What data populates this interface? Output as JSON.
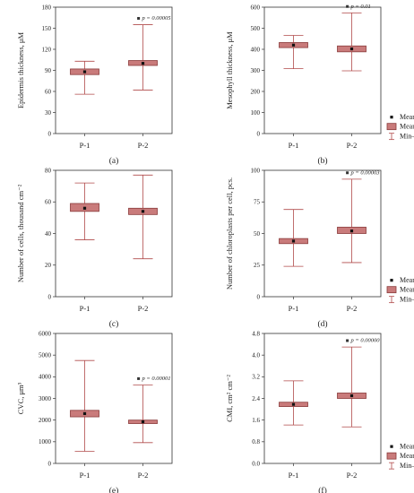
{
  "legend": {
    "mean_label": "Mean",
    "se_label": "Mean ± SE",
    "range_label": "Min–Max",
    "box_color": "#c97b7b",
    "box_stroke": "#8a3b3b",
    "whisker_color": "#b04a4a"
  },
  "chart_data": [
    {
      "type": "boxplot",
      "panel_label": "(a)",
      "ylabel": "Epidermis thickness, μM",
      "ylim": [
        0,
        180
      ],
      "yticks": [
        0,
        30,
        60,
        90,
        120,
        150,
        180
      ],
      "ytick_labels": [
        "0",
        "30",
        "60",
        "90",
        "120",
        "150",
        "180"
      ],
      "categories": [
        "P-1",
        "P-2"
      ],
      "stats": [
        {
          "min": 56,
          "se_low": 84,
          "mean": 88,
          "se_high": 92,
          "max": 103
        },
        {
          "min": 62,
          "se_low": 97,
          "mean": 100,
          "se_high": 104,
          "max": 155
        }
      ],
      "annotation": {
        "category_index": 1,
        "text": "p = 0.00005"
      }
    },
    {
      "type": "boxplot",
      "panel_label": "(b)",
      "ylabel": "Mesophyll thickness, μM",
      "ylim": [
        0,
        600
      ],
      "yticks": [
        0,
        100,
        200,
        300,
        400,
        500,
        600
      ],
      "ytick_labels": [
        "0",
        "100",
        "200",
        "300",
        "400",
        "500",
        "600"
      ],
      "categories": [
        "P-1",
        "P-2"
      ],
      "stats": [
        {
          "min": 308,
          "se_low": 408,
          "mean": 420,
          "se_high": 432,
          "max": 466
        },
        {
          "min": 298,
          "se_low": 388,
          "mean": 402,
          "se_high": 416,
          "max": 573
        }
      ],
      "annotation": {
        "category_index": 1,
        "text": "p = 0.01"
      }
    },
    {
      "type": "boxplot",
      "panel_label": "(c)",
      "ylabel": "Number of cells, thousand cm⁻²",
      "ylim": [
        0,
        80
      ],
      "yticks": [
        0,
        20,
        40,
        60,
        80
      ],
      "ytick_labels": [
        "0",
        "20",
        "40",
        "60",
        "80"
      ],
      "categories": [
        "P-1",
        "P-2"
      ],
      "stats": [
        {
          "min": 36,
          "se_low": 54,
          "mean": 56,
          "se_high": 59,
          "max": 72
        },
        {
          "min": 24,
          "se_low": 52,
          "mean": 54,
          "se_high": 56,
          "max": 77
        }
      ],
      "annotation": null
    },
    {
      "type": "boxplot",
      "panel_label": "(d)",
      "ylabel": "Number of chloroplasts per cell, pcs.",
      "ylim": [
        0,
        100
      ],
      "yticks": [
        0,
        25,
        50,
        75,
        100
      ],
      "ytick_labels": [
        "0",
        "25",
        "50",
        "75",
        "100"
      ],
      "categories": [
        "P-1",
        "P-2"
      ],
      "stats": [
        {
          "min": 24,
          "se_low": 42,
          "mean": 44,
          "se_high": 46,
          "max": 69
        },
        {
          "min": 27,
          "se_low": 50,
          "mean": 52,
          "se_high": 55,
          "max": 93
        }
      ],
      "annotation": {
        "category_index": 1,
        "text": "p = 0.00003"
      }
    },
    {
      "type": "boxplot",
      "panel_label": "(e)",
      "ylabel": "CVC, μm³",
      "ylim": [
        0,
        6000
      ],
      "yticks": [
        0,
        1000,
        2000,
        3000,
        4000,
        5000,
        6000
      ],
      "ytick_labels": [
        "0",
        "1000",
        "2000",
        "3000",
        "4000",
        "5000",
        "6000"
      ],
      "categories": [
        "P-1",
        "P-2"
      ],
      "stats": [
        {
          "min": 560,
          "se_low": 2150,
          "mean": 2300,
          "se_high": 2450,
          "max": 4750
        },
        {
          "min": 960,
          "se_low": 1840,
          "mean": 1920,
          "se_high": 2000,
          "max": 3620
        }
      ],
      "annotation": {
        "category_index": 1,
        "text": "p = 0.00001"
      }
    },
    {
      "type": "boxplot",
      "panel_label": "(f)",
      "ylabel": "CMI, cm² cm⁻²",
      "ylim": [
        0,
        4.8
      ],
      "yticks": [
        0,
        0.8,
        1.6,
        2.4,
        3.2,
        4.0,
        4.8
      ],
      "ytick_labels": [
        "0.0",
        "0.8",
        "1.6",
        "2.4",
        "3.2",
        "4.0",
        "4.8"
      ],
      "categories": [
        "P-1",
        "P-2"
      ],
      "stats": [
        {
          "min": 1.42,
          "se_low": 2.1,
          "mean": 2.18,
          "se_high": 2.26,
          "max": 3.05
        },
        {
          "min": 1.35,
          "se_low": 2.4,
          "mean": 2.5,
          "se_high": 2.6,
          "max": 4.3
        }
      ],
      "annotation": {
        "category_index": 1,
        "text": "p = 0.00000"
      }
    }
  ]
}
